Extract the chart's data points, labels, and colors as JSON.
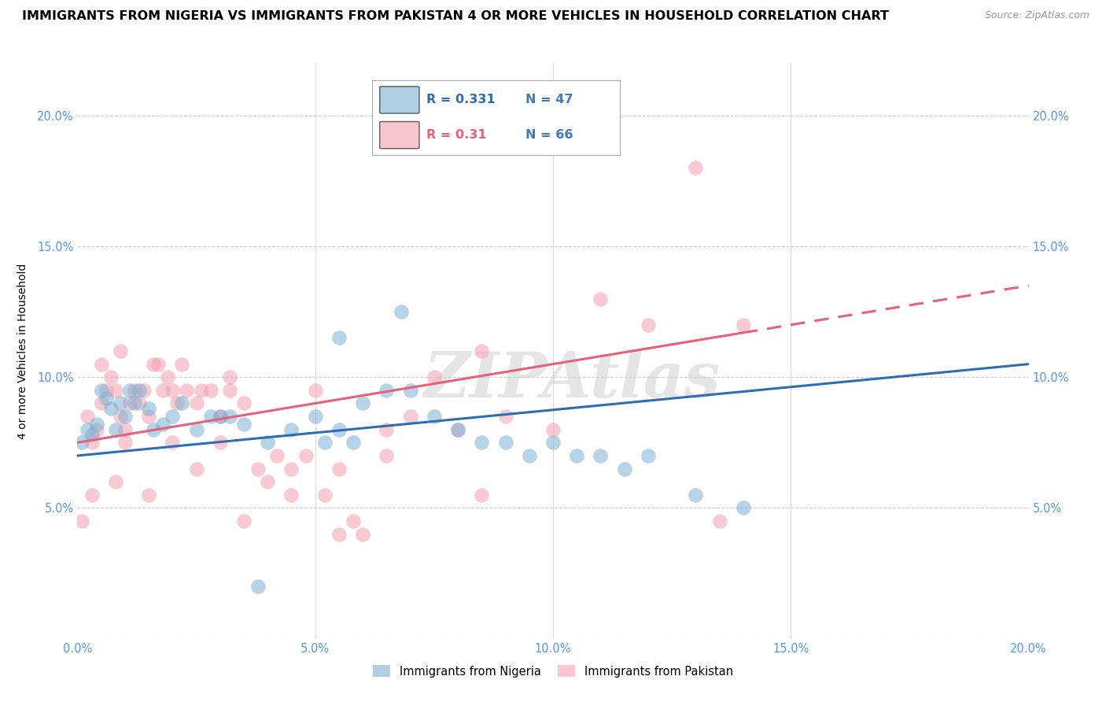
{
  "title": "IMMIGRANTS FROM NIGERIA VS IMMIGRANTS FROM PAKISTAN 4 OR MORE VEHICLES IN HOUSEHOLD CORRELATION CHART",
  "source": "Source: ZipAtlas.com",
  "ylabel": "4 or more Vehicles in Household",
  "nigeria_R": 0.331,
  "nigeria_N": 47,
  "pakistan_R": 0.31,
  "pakistan_N": 66,
  "nigeria_color": "#7BAFD4",
  "pakistan_color": "#F4A0B0",
  "nigeria_line_color": "#2E6DB4",
  "pakistan_line_color": "#E8607A",
  "watermark": "ZIPAtlas",
  "nigeria_points_x": [
    0.1,
    0.2,
    0.3,
    0.4,
    0.5,
    0.6,
    0.7,
    0.8,
    0.9,
    1.0,
    1.1,
    1.2,
    1.3,
    1.5,
    1.6,
    1.8,
    2.0,
    2.2,
    2.5,
    2.8,
    3.0,
    3.2,
    3.5,
    4.0,
    4.5,
    5.0,
    5.2,
    5.5,
    5.8,
    6.0,
    6.5,
    7.0,
    7.5,
    8.0,
    8.5,
    9.0,
    9.5,
    10.0,
    10.5,
    11.0,
    11.5,
    12.0,
    13.0,
    14.0,
    5.5,
    6.8,
    3.8
  ],
  "nigeria_points_y": [
    7.5,
    8.0,
    7.8,
    8.2,
    9.5,
    9.2,
    8.8,
    8.0,
    9.0,
    8.5,
    9.5,
    9.0,
    9.5,
    8.8,
    8.0,
    8.2,
    8.5,
    9.0,
    8.0,
    8.5,
    8.5,
    8.5,
    8.2,
    7.5,
    8.0,
    8.5,
    7.5,
    8.0,
    7.5,
    9.0,
    9.5,
    9.5,
    8.5,
    8.0,
    7.5,
    7.5,
    7.0,
    7.5,
    7.0,
    7.0,
    6.5,
    7.0,
    5.5,
    5.0,
    11.5,
    12.5,
    2.0
  ],
  "pakistan_points_x": [
    0.1,
    0.2,
    0.3,
    0.4,
    0.5,
    0.5,
    0.6,
    0.7,
    0.8,
    0.9,
    0.9,
    1.0,
    1.1,
    1.2,
    1.3,
    1.4,
    1.5,
    1.6,
    1.7,
    1.8,
    1.9,
    2.0,
    2.1,
    2.2,
    2.3,
    2.5,
    2.6,
    2.8,
    3.0,
    3.2,
    3.2,
    3.5,
    3.8,
    4.0,
    4.2,
    4.5,
    4.8,
    5.0,
    5.2,
    5.5,
    5.8,
    6.0,
    6.5,
    7.0,
    7.5,
    8.0,
    8.5,
    9.0,
    10.0,
    11.0,
    12.0,
    13.0,
    14.0,
    0.3,
    0.8,
    1.0,
    1.5,
    2.0,
    2.5,
    3.0,
    3.5,
    4.5,
    5.5,
    6.5,
    8.5,
    13.5
  ],
  "pakistan_points_y": [
    4.5,
    8.5,
    7.5,
    8.0,
    10.5,
    9.0,
    9.5,
    10.0,
    9.5,
    11.0,
    8.5,
    8.0,
    9.0,
    9.5,
    9.0,
    9.5,
    8.5,
    10.5,
    10.5,
    9.5,
    10.0,
    9.5,
    9.0,
    10.5,
    9.5,
    9.0,
    9.5,
    9.5,
    8.5,
    10.0,
    9.5,
    9.0,
    6.5,
    6.0,
    7.0,
    6.5,
    7.0,
    9.5,
    5.5,
    6.5,
    4.5,
    4.0,
    8.0,
    8.5,
    10.0,
    8.0,
    11.0,
    8.5,
    8.0,
    13.0,
    12.0,
    18.0,
    12.0,
    5.5,
    6.0,
    7.5,
    5.5,
    7.5,
    6.5,
    7.5,
    4.5,
    5.5,
    4.0,
    7.0,
    5.5,
    4.5
  ],
  "xlim": [
    0,
    20
  ],
  "ylim": [
    0,
    22
  ],
  "yticks": [
    0,
    5,
    10,
    15,
    20
  ],
  "ytick_labels_left": [
    "",
    "5.0%",
    "10.0%",
    "15.0%",
    "20.0%"
  ],
  "ytick_labels_right": [
    "",
    "5.0%",
    "10.0%",
    "15.0%",
    "20.0%"
  ],
  "xticks": [
    0,
    5,
    10,
    15,
    20
  ],
  "xtick_labels": [
    "0.0%",
    "5.0%",
    "10.0%",
    "15.0%",
    "20.0%"
  ],
  "grid_color": "#CCCCCC",
  "background_color": "#FFFFFF",
  "title_fontsize": 11.5,
  "axis_label_fontsize": 10,
  "tick_fontsize": 10.5,
  "nigeria_line_start_y": 7.0,
  "nigeria_line_end_y": 10.5,
  "pakistan_line_start_y": 7.5,
  "pakistan_line_end_y": 13.5,
  "pakistan_solid_end_x": 14.0
}
